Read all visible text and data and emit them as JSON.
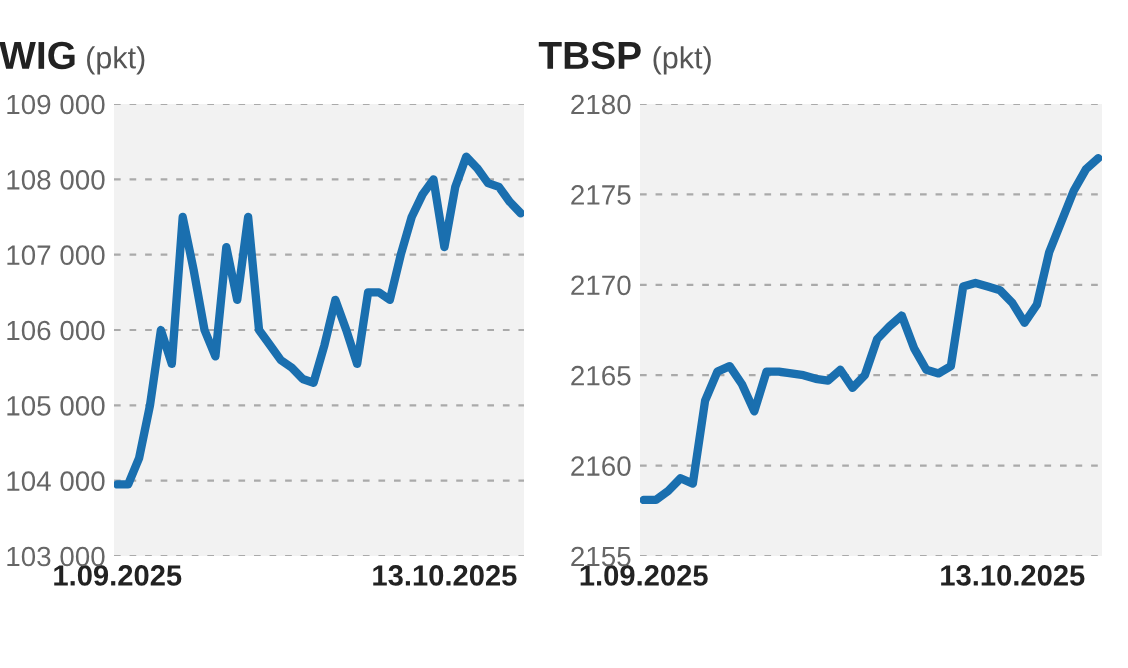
{
  "chart_data": [
    {
      "type": "line",
      "title": "WIG",
      "subtitle": "(pkt)",
      "categories": [
        "1.09.2025",
        null,
        null,
        null,
        null,
        null,
        null,
        null,
        null,
        null,
        null,
        null,
        null,
        null,
        null,
        null,
        null,
        null,
        null,
        null,
        null,
        null,
        null,
        null,
        null,
        null,
        null,
        null,
        null,
        null,
        "13.10.2025",
        null,
        null,
        null,
        null,
        null,
        null,
        null
      ],
      "series": [
        {
          "color": "#1a6faf",
          "values": [
            103950,
            103950,
            104300,
            105000,
            106000,
            105550,
            107500,
            106800,
            106000,
            105650,
            107100,
            106400,
            107500,
            106000,
            105800,
            105600,
            105500,
            105350,
            105300,
            105800,
            106400,
            106000,
            105550,
            106500,
            106500,
            106400,
            107000,
            107500,
            107800,
            108000,
            107100,
            107900,
            108300,
            108150,
            107950,
            107900,
            107700,
            107550
          ]
        }
      ],
      "ylim": [
        103000,
        109000
      ],
      "yticks": [
        {
          "value": 103000,
          "label": "103 000"
        },
        {
          "value": 104000,
          "label": "104 000"
        },
        {
          "value": 105000,
          "label": "105 000"
        },
        {
          "value": 106000,
          "label": "106 000"
        },
        {
          "value": 107000,
          "label": "107 000"
        },
        {
          "value": 108000,
          "label": "108 000"
        },
        {
          "value": 109000,
          "label": "109 000"
        }
      ],
      "grid": "y",
      "marker": "none",
      "line_style": "solid"
    },
    {
      "type": "line",
      "title": "TBSP",
      "subtitle": "(pkt)",
      "categories": [
        "1.09.2025",
        null,
        null,
        null,
        null,
        null,
        null,
        null,
        null,
        null,
        null,
        null,
        null,
        null,
        null,
        null,
        null,
        null,
        null,
        null,
        null,
        null,
        null,
        null,
        null,
        null,
        null,
        null,
        null,
        null,
        "13.10.2025",
        null,
        null,
        null,
        null,
        null,
        null,
        null
      ],
      "series": [
        {
          "color": "#1a6faf",
          "values": [
            2158.1,
            2158.1,
            2158.6,
            2159.3,
            2159.0,
            2163.6,
            2165.2,
            2165.5,
            2164.5,
            2163.0,
            2165.2,
            2165.2,
            2165.1,
            2165.0,
            2164.8,
            2164.7,
            2165.3,
            2164.3,
            2165.0,
            2167.0,
            2167.7,
            2168.3,
            2166.5,
            2165.3,
            2165.1,
            2165.5,
            2169.9,
            2170.1,
            2169.9,
            2169.7,
            2169.0,
            2167.9,
            2168.9,
            2171.8,
            2173.5,
            2175.2,
            2176.4,
            2177.0
          ]
        }
      ],
      "ylim": [
        2155,
        2180
      ],
      "yticks": [
        2155,
        2160,
        2165,
        2170,
        2175,
        2180
      ],
      "grid": "y",
      "marker": "none",
      "line_style": "solid"
    }
  ]
}
